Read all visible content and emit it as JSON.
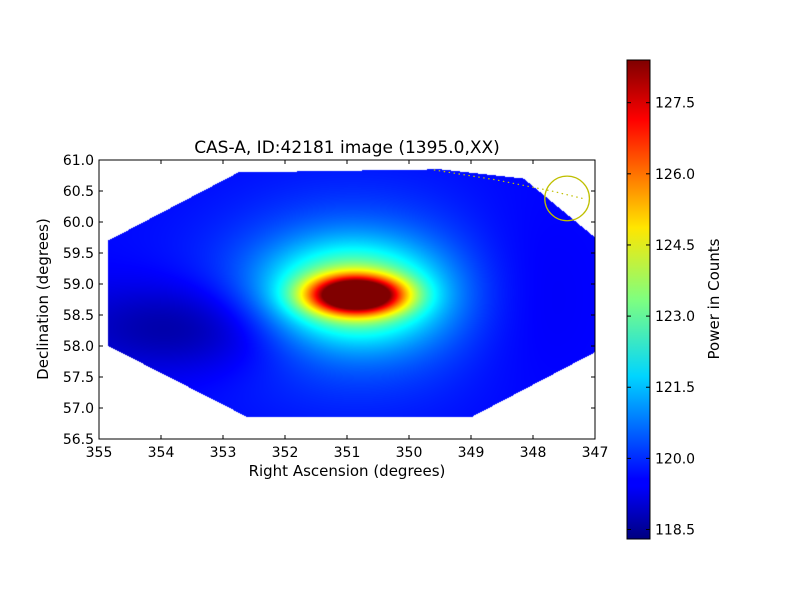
{
  "chart_data": {
    "type": "heatmap",
    "title": "CAS-A, ID:42181 image (1395.0,XX)",
    "xlabel": "Right Ascension (degrees)",
    "ylabel": "Declination (degrees)",
    "xlim": [
      355,
      347
    ],
    "ylim": [
      56.5,
      61.0
    ],
    "xticks": [
      "355",
      "354",
      "353",
      "352",
      "351",
      "350",
      "349",
      "348",
      "347"
    ],
    "yticks": [
      "56.5",
      "57.0",
      "57.5",
      "58.0",
      "58.5",
      "59.0",
      "59.5",
      "60.0",
      "60.5",
      "61.0"
    ],
    "colorbar": {
      "label": "Power in Counts",
      "range": [
        118.3,
        128.4
      ],
      "ticks": [
        "118.5",
        "120.0",
        "121.5",
        "123.0",
        "124.5",
        "126.0",
        "127.5"
      ],
      "colormap": "jet"
    },
    "footprint_polygon": [
      [
        354.85,
        58.0
      ],
      [
        354.85,
        59.7
      ],
      [
        352.75,
        60.8
      ],
      [
        349.5,
        60.85
      ],
      [
        348.15,
        60.7
      ],
      [
        347.0,
        59.75
      ],
      [
        347.0,
        57.9
      ],
      [
        349.0,
        56.85
      ],
      [
        352.6,
        56.85
      ]
    ],
    "background_value": 119.6,
    "components": [
      {
        "ra": 350.85,
        "dec": 58.82,
        "amp": 8.6,
        "sigma_ra": 0.5,
        "sigma_dec": 0.2
      },
      {
        "ra": 350.9,
        "dec": 58.85,
        "amp": 3.6,
        "sigma_ra": 0.95,
        "sigma_dec": 0.55
      },
      {
        "ra": 350.9,
        "dec": 58.8,
        "amp": 1.2,
        "sigma_ra": 1.6,
        "sigma_dec": 1.1
      },
      {
        "ra": 353.5,
        "dec": 58.3,
        "amp": -1.1,
        "sigma_ra": 1.4,
        "sigma_dec": 0.5
      },
      {
        "ra": 348.2,
        "dec": 58.8,
        "amp": -0.3,
        "sigma_ra": 0.8,
        "sigma_dec": 1.0
      }
    ],
    "beam_circle": {
      "ra": 347.45,
      "dec": 60.38,
      "radius_deg": 0.36,
      "color": "#bfbf00"
    },
    "beam_track": [
      [
        349.6,
        60.84
      ],
      [
        348.6,
        60.68
      ],
      [
        347.7,
        60.5
      ],
      [
        347.2,
        60.38
      ]
    ]
  }
}
